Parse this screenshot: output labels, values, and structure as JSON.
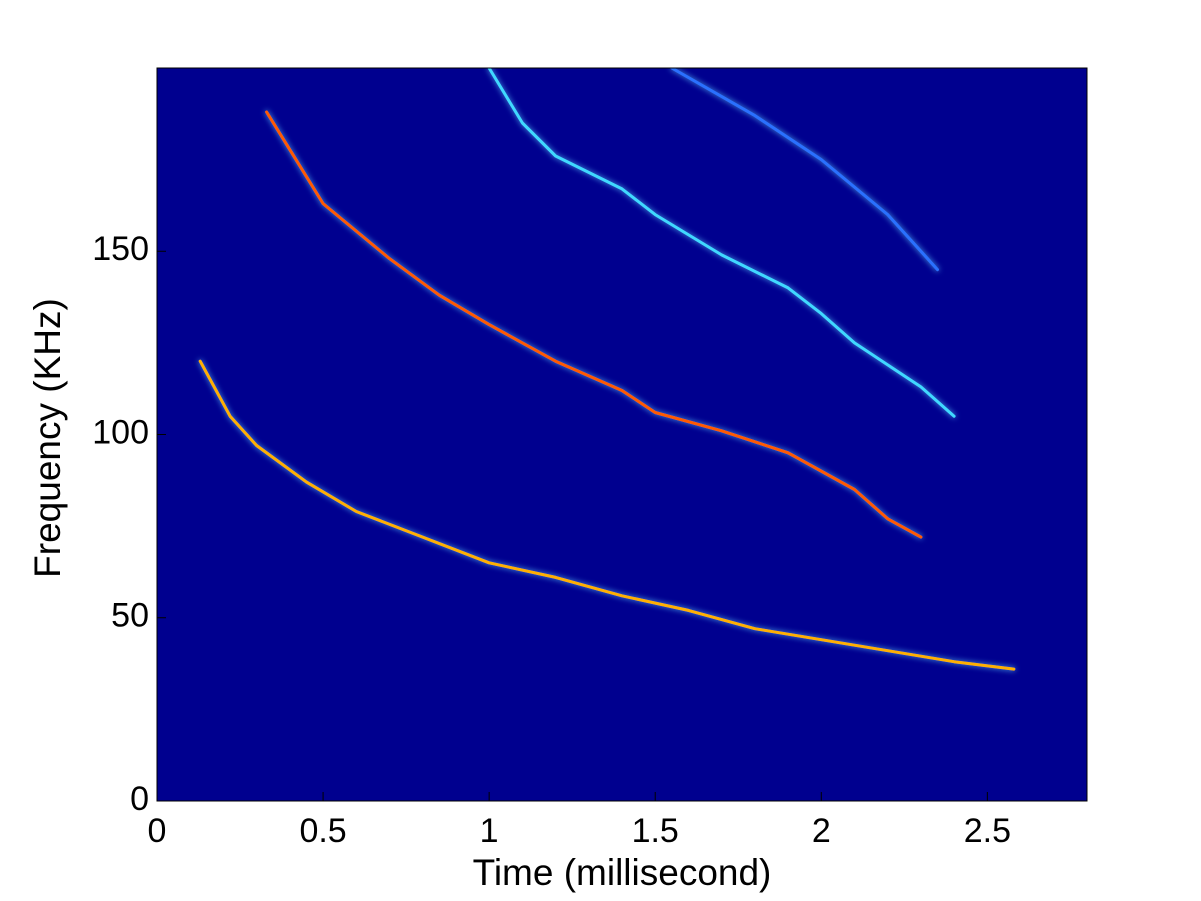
{
  "chart_data": {
    "type": "spectrogram",
    "xlabel": "Time (millisecond)",
    "ylabel": "Frequency (KHz)",
    "xlim": [
      0,
      2.8
    ],
    "ylim": [
      0,
      200
    ],
    "xticks": [
      0,
      0.5,
      1,
      1.5,
      2,
      2.5
    ],
    "yticks": [
      0,
      50,
      100,
      150
    ],
    "background": "#00008f",
    "series": [
      {
        "color": "#ffb000",
        "x": [
          0.13,
          0.22,
          0.3,
          0.45,
          0.6,
          0.8,
          1.0,
          1.2,
          1.4,
          1.6,
          1.8,
          2.0,
          2.2,
          2.4,
          2.58
        ],
        "values": [
          120,
          105,
          97,
          87,
          79,
          72,
          65,
          61,
          56,
          52,
          47,
          44,
          41,
          38,
          36
        ]
      },
      {
        "color": "#ff5a00",
        "x": [
          0.33,
          0.5,
          0.7,
          0.85,
          1.0,
          1.2,
          1.4,
          1.5,
          1.7,
          1.9,
          2.1,
          2.2,
          2.3
        ],
        "values": [
          188,
          163,
          148,
          138,
          130,
          120,
          112,
          106,
          101,
          95,
          85,
          77,
          72
        ]
      },
      {
        "color": "#40d8ff",
        "x": [
          1.0,
          1.1,
          1.2,
          1.4,
          1.5,
          1.7,
          1.9,
          2.0,
          2.1,
          2.3,
          2.4
        ],
        "values": [
          200,
          185,
          176,
          167,
          160,
          149,
          140,
          133,
          125,
          113,
          105
        ]
      },
      {
        "color": "#2a70ff",
        "x": [
          1.55,
          1.8,
          2.0,
          2.2,
          2.35
        ],
        "values": [
          200,
          187,
          175,
          160,
          145
        ]
      }
    ]
  }
}
